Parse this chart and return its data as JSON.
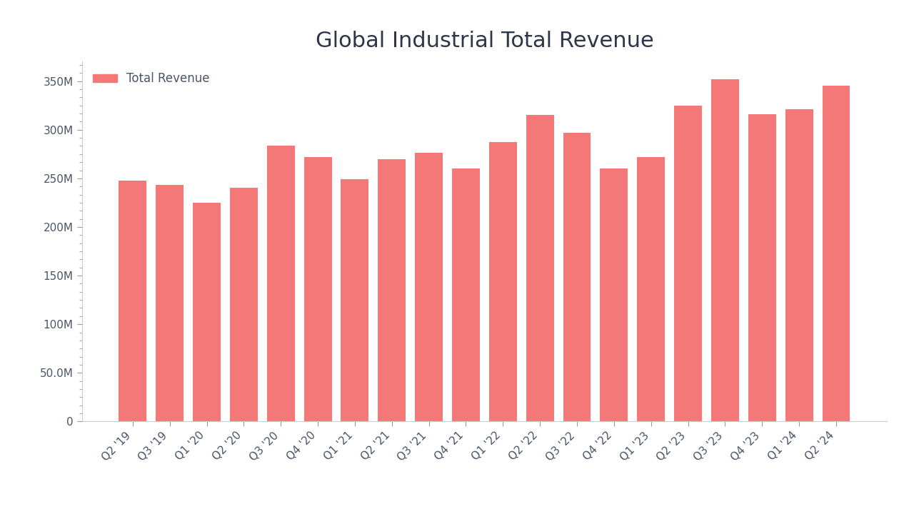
{
  "title": "Global Industrial Total Revenue",
  "bar_color": "#F47878",
  "legend_label": "Total Revenue",
  "legend_color": "#F47878",
  "background_color": "#FFFFFF",
  "text_color": "#4A5568",
  "title_color": "#2D3748",
  "categories": [
    "Q2 '19",
    "Q3 '19",
    "Q1 '20",
    "Q2 '20",
    "Q3 '20",
    "Q4 '20",
    "Q1 '21",
    "Q2 '21",
    "Q3 '21",
    "Q4 '21",
    "Q1 '22",
    "Q2 '22",
    "Q3 '22",
    "Q4 '22",
    "Q1 '23",
    "Q2 '23",
    "Q3 '23",
    "Q4 '23",
    "Q1 '24",
    "Q2 '24"
  ],
  "values": [
    248000000,
    243000000,
    225000000,
    240000000,
    284000000,
    272000000,
    249000000,
    270000000,
    276000000,
    260000000,
    287000000,
    315000000,
    297000000,
    260000000,
    272000000,
    325000000,
    352000000,
    316000000,
    321000000,
    345000000
  ],
  "ylim": [
    0,
    370000000
  ],
  "yticks": [
    0,
    50000000,
    100000000,
    150000000,
    200000000,
    250000000,
    300000000,
    350000000
  ],
  "title_fontsize": 22,
  "tick_fontsize": 11,
  "legend_fontsize": 12
}
